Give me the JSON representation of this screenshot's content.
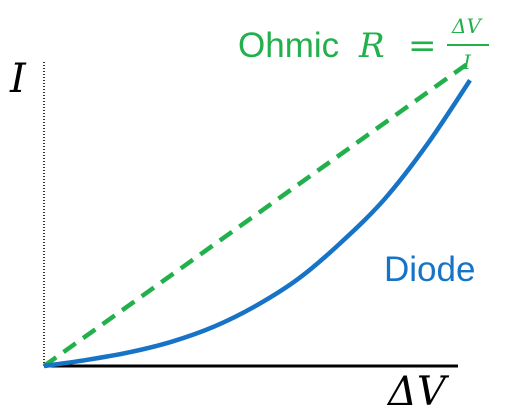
{
  "chart_data": {
    "type": "line",
    "title": "",
    "xlabel": "ΔV",
    "ylabel": "I",
    "xlim": [
      0,
      1
    ],
    "ylim": [
      0,
      1
    ],
    "grid": false,
    "legend": "none",
    "series": [
      {
        "name": "Ohmic",
        "formula": {
          "lhs": "R",
          "equals": "=",
          "numerator": "ΔV",
          "denominator": "I"
        },
        "style": "dashed",
        "color": "#22b04c",
        "x": [
          0.0,
          0.25,
          0.5,
          0.75,
          1.0
        ],
        "y": [
          0.0,
          0.25,
          0.5,
          0.75,
          1.0
        ]
      },
      {
        "name": "Diode",
        "style": "solid",
        "color": "#1673c6",
        "x": [
          0.0,
          0.1,
          0.2,
          0.3,
          0.4,
          0.5,
          0.6,
          0.7,
          0.8,
          0.9,
          1.0
        ],
        "y": [
          0.0,
          0.02,
          0.045,
          0.08,
          0.13,
          0.2,
          0.29,
          0.41,
          0.55,
          0.73,
          0.94
        ]
      }
    ]
  }
}
